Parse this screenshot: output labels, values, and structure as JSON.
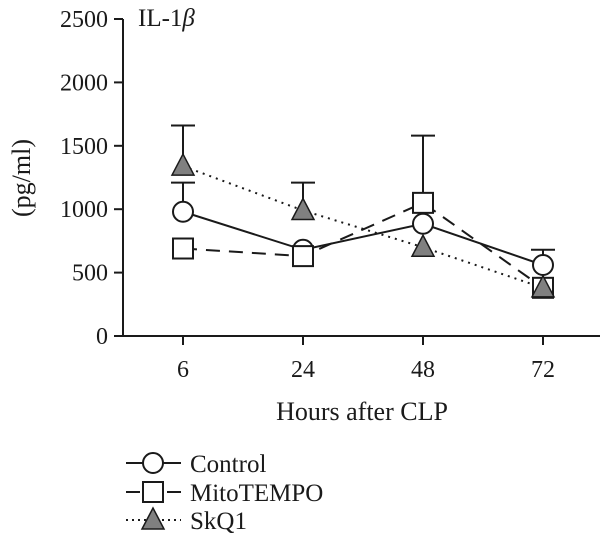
{
  "chart_data": {
    "type": "line",
    "title": "IL-1β",
    "title_parts": [
      "IL-1",
      "β"
    ],
    "xlabel": "Hours after CLP",
    "ylabel": "(pg/ml)",
    "categories": [
      "6",
      "24",
      "48",
      "72"
    ],
    "ylim": [
      0,
      2500
    ],
    "yticks": [
      0,
      500,
      1000,
      1500,
      2000,
      2500
    ],
    "grid": false,
    "legend_position": "bottom-left",
    "series": [
      {
        "name": "Control",
        "marker": "circle",
        "marker_fill": "#ffffff",
        "line_style": "solid",
        "values": [
          980,
          680,
          885,
          560
        ],
        "error": [
          230,
          0,
          0,
          120
        ]
      },
      {
        "name": "MitoTEMPO",
        "marker": "square",
        "marker_fill": "#ffffff",
        "line_style": "dashed",
        "values": [
          690,
          630,
          1050,
          380
        ],
        "error": [
          0,
          0,
          530,
          0
        ]
      },
      {
        "name": "SkQ1",
        "marker": "triangle",
        "marker_fill": "#808080",
        "line_style": "dotted",
        "values": [
          1340,
          990,
          700,
          380
        ],
        "error": [
          320,
          220,
          0,
          0
        ]
      }
    ]
  },
  "colors": {
    "ink": "#1a1a1a",
    "skq1_fill": "#808080"
  }
}
